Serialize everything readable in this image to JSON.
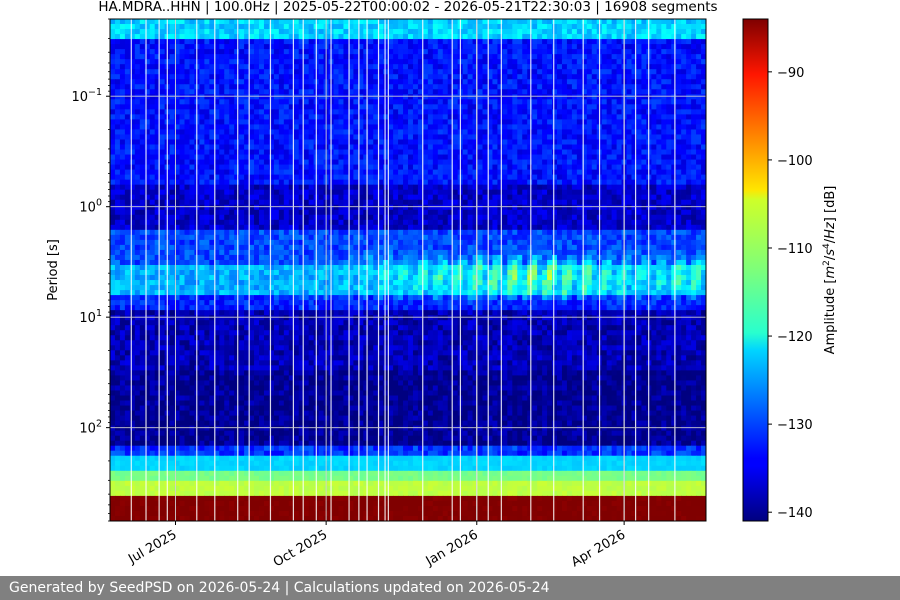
{
  "chart_data": {
    "type": "heatmap",
    "title": "HA.MDRA..HHN | 100.0Hz | 2025-05-22T00:00:02 - 2026-05-21T22:30:03 | 16908 segments",
    "x": {
      "kind": "date",
      "start": "2025-05-22",
      "end": "2026-05-21",
      "ticks": [
        {
          "date": "2025-07-01",
          "label": "Jul 2025"
        },
        {
          "date": "2025-10-01",
          "label": "Oct 2025"
        },
        {
          "date": "2026-01-01",
          "label": "Jan 2026"
        },
        {
          "date": "2026-04-01",
          "label": "Apr 2026"
        }
      ]
    },
    "y": {
      "label": "Period [s]",
      "scale": "log",
      "inverted": true,
      "lim": [
        0.02,
        700
      ],
      "ticks": [
        {
          "value": 0.1,
          "base": "10",
          "exp": "−1"
        },
        {
          "value": 1,
          "base": "10",
          "exp": "0"
        },
        {
          "value": 10,
          "base": "10",
          "exp": "1"
        },
        {
          "value": 100,
          "base": "10",
          "exp": "2"
        }
      ]
    },
    "colorbar": {
      "label_parts": [
        "Amplitude [",
        "m",
        "2",
        "/",
        "s",
        "4",
        "/",
        "Hz",
        "] [dB]"
      ],
      "colormap": "jet",
      "range": [
        -141,
        -84
      ],
      "ticks": [
        {
          "value": -90,
          "label": "−90"
        },
        {
          "value": -100,
          "label": "−100"
        },
        {
          "value": -110,
          "label": "−110"
        },
        {
          "value": -120,
          "label": "−120"
        },
        {
          "value": -130,
          "label": "−130"
        },
        {
          "value": -140,
          "label": "−140"
        }
      ]
    },
    "grid": true,
    "period_bands": [
      {
        "from": 0.02,
        "to": 0.032,
        "db": -122
      },
      {
        "from": 0.032,
        "to": 0.6,
        "db": -133
      },
      {
        "from": 0.6,
        "to": 1.6,
        "db": -137
      },
      {
        "from": 1.6,
        "to": 3.2,
        "db": -130
      },
      {
        "from": 3.2,
        "to": 6.5,
        "db": -124
      },
      {
        "from": 6.5,
        "to": 8.5,
        "db": -132
      },
      {
        "from": 8.5,
        "to": 30,
        "db": -138
      },
      {
        "from": 30,
        "to": 150,
        "db": -140
      },
      {
        "from": 150,
        "to": 175,
        "db": -131
      },
      {
        "from": 175,
        "to": 240,
        "db": -122
      },
      {
        "from": 240,
        "to": 300,
        "db": -113
      },
      {
        "from": 300,
        "to": 420,
        "db": -109
      },
      {
        "from": 420,
        "to": 700,
        "db": -84
      }
    ],
    "seasonal_microseism": {
      "period_range": [
        2.5,
        7.5
      ],
      "peaks": [
        {
          "date": "2025-06-10",
          "db": -127
        },
        {
          "date": "2025-08-10",
          "db": -131
        },
        {
          "date": "2025-09-20",
          "db": -126
        },
        {
          "date": "2025-11-20",
          "db": -118
        },
        {
          "date": "2026-01-10",
          "db": -112
        },
        {
          "date": "2026-02-10",
          "db": -110
        },
        {
          "date": "2026-03-05",
          "db": -113
        },
        {
          "date": "2026-04-15",
          "db": -121
        },
        {
          "date": "2026-05-10",
          "db": -114
        }
      ]
    },
    "gaps": [
      "2025-06-04",
      "2025-06-13",
      "2025-06-21",
      "2025-06-26",
      "2025-07-14",
      "2025-07-25",
      "2025-08-08",
      "2025-08-15",
      "2025-08-28",
      "2025-09-11",
      "2025-09-17",
      "2025-09-25",
      "2025-10-04",
      "2025-10-15",
      "2025-10-21",
      "2025-10-26",
      "2025-11-02",
      "2025-11-06",
      "2025-11-08",
      "2025-11-29",
      "2025-12-17",
      "2025-12-22",
      "2026-01-01",
      "2026-01-08",
      "2026-01-16",
      "2026-02-03",
      "2026-02-17",
      "2026-03-07",
      "2026-03-17",
      "2026-04-01",
      "2026-04-08",
      "2026-04-16",
      "2026-05-02"
    ]
  },
  "footer": {
    "text": "Generated by SeedPSD on 2026-05-24 | Calculations updated on 2026-05-24"
  }
}
